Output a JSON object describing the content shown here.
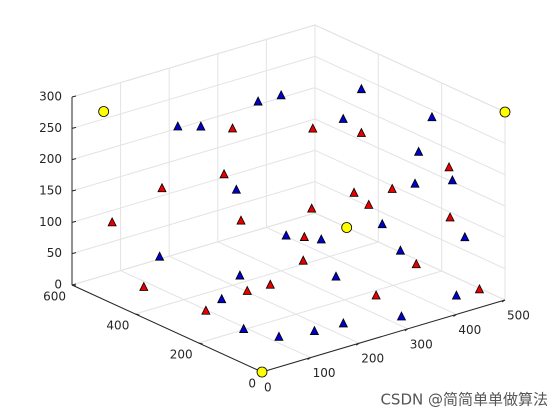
{
  "chart_data": {
    "type": "scatter3d",
    "xlim": [
      0,
      500
    ],
    "xticks": [
      0,
      100,
      200,
      300,
      400,
      500
    ],
    "ylim": [
      0,
      600
    ],
    "yticks": [
      0,
      200,
      400,
      600
    ],
    "zlim": [
      0,
      300
    ],
    "zticks": [
      0,
      50,
      100,
      150,
      200,
      250,
      300
    ],
    "grid": true,
    "series": [
      {
        "color": "#e60000",
        "marker": "triangle",
        "x": [
          50,
          80,
          120,
          150,
          200,
          100,
          250,
          300,
          350,
          400,
          450,
          480,
          200,
          300,
          150,
          400,
          350,
          250,
          50,
          450,
          320,
          180
        ],
        "y": [
          450,
          300,
          500,
          350,
          400,
          200,
          250,
          100,
          50,
          20,
          100,
          50,
          150,
          300,
          100,
          300,
          200,
          450,
          550,
          400,
          80,
          250
        ],
        "z": [
          20,
          10,
          150,
          200,
          250,
          60,
          100,
          30,
          80,
          150,
          200,
          10,
          180,
          250,
          120,
          220,
          140,
          80,
          100,
          90,
          200,
          40
        ]
      },
      {
        "color": "#0000cc",
        "marker": "triangle",
        "x": [
          100,
          200,
          300,
          400,
          150,
          250,
          350,
          450,
          50,
          200,
          300,
          400,
          480,
          120,
          220,
          330,
          420,
          80,
          180,
          280,
          380,
          470,
          260,
          160,
          350,
          60
        ],
        "y": [
          100,
          50,
          20,
          0,
          300,
          150,
          100,
          50,
          400,
          500,
          400,
          300,
          200,
          450,
          350,
          250,
          150,
          250,
          200,
          50,
          100,
          120,
          480,
          80,
          350,
          150
        ],
        "z": [
          10,
          20,
          15,
          30,
          50,
          60,
          90,
          100,
          80,
          230,
          280,
          290,
          250,
          260,
          300,
          270,
          220,
          40,
          130,
          160,
          190,
          170,
          120,
          10,
          50,
          20
        ]
      },
      {
        "color": "#ffff00",
        "marker": "circle",
        "x": [
          0,
          500,
          0,
          500
        ],
        "y": [
          0,
          0,
          500,
          500
        ],
        "z": [
          0,
          300,
          300,
          0
        ]
      }
    ]
  },
  "watermark": "CSDN @简简单单做算法"
}
